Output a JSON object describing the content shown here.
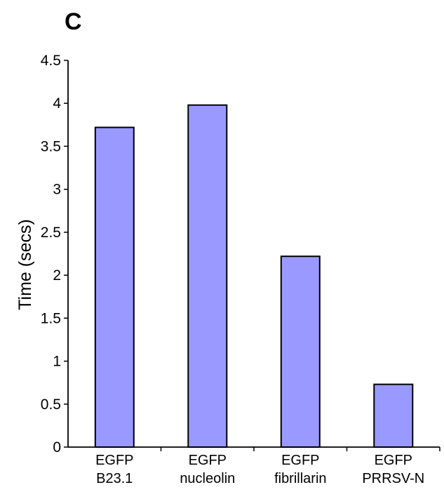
{
  "panel_label": "C",
  "colors": {
    "bar_fill": "#9999ff",
    "bar_stroke": "#000000",
    "axis": "#000000"
  },
  "chart_data": {
    "type": "bar",
    "categories": [
      [
        "EGFP",
        "B23.1"
      ],
      [
        "EGFP",
        "nucleolin"
      ],
      [
        "EGFP",
        "fibrillarin"
      ],
      [
        "EGFP",
        "PRRSV-N"
      ]
    ],
    "values": [
      3.72,
      3.98,
      2.22,
      0.73
    ],
    "title": "",
    "xlabel": "",
    "ylabel": "Time (secs)",
    "ylim": [
      0,
      4.5
    ],
    "yticks": [
      "0",
      "0.5",
      "1",
      "1.5",
      "2",
      "2.5",
      "3",
      "3.5",
      "4",
      "4.5"
    ],
    "grid": false
  }
}
